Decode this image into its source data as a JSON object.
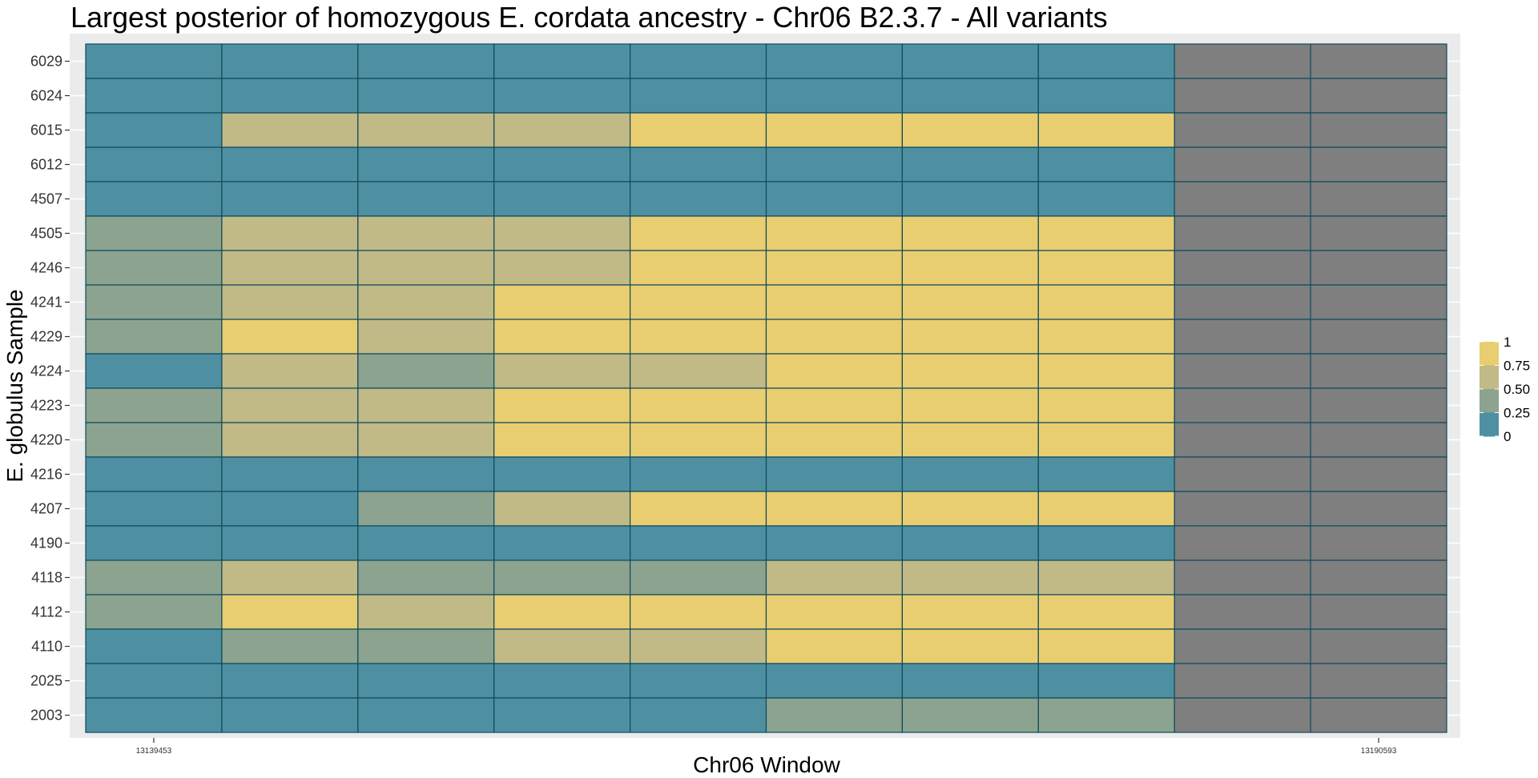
{
  "chart_data": {
    "type": "heatmap",
    "title": "Largest posterior of homozygous E. cordata ancestry - Chr06 B2.3.7 - All variants",
    "xlabel": "Chr06 Window",
    "ylabel": "E. globulus Sample",
    "x_tick_labels": [
      "13139453",
      "",
      "",
      "",
      "",
      "",
      "",
      "",
      "",
      "13190593"
    ],
    "rows": [
      "6029",
      "6024",
      "6015",
      "6012",
      "4507",
      "4505",
      "4246",
      "4241",
      "4229",
      "4224",
      "4223",
      "4220",
      "4216",
      "4207",
      "4190",
      "4118",
      "4112",
      "4110",
      "2025",
      "2003"
    ],
    "values": [
      [
        0,
        0,
        0,
        0,
        0,
        0,
        0,
        0,
        null,
        null
      ],
      [
        0,
        0,
        0,
        0,
        0,
        0,
        0,
        0,
        null,
        null
      ],
      [
        0,
        0.75,
        0.75,
        0.75,
        1,
        1,
        1,
        1,
        null,
        null
      ],
      [
        0,
        0,
        0,
        0,
        0,
        0,
        0,
        0,
        null,
        null
      ],
      [
        0,
        0,
        0,
        0,
        0,
        0,
        0,
        0,
        null,
        null
      ],
      [
        0.5,
        0.75,
        0.75,
        0.75,
        1,
        1,
        1,
        1,
        null,
        null
      ],
      [
        0.5,
        0.75,
        0.75,
        0.75,
        1,
        1,
        1,
        1,
        null,
        null
      ],
      [
        0.5,
        0.75,
        0.75,
        1,
        1,
        1,
        1,
        1,
        null,
        null
      ],
      [
        0.5,
        1,
        0.75,
        1,
        1,
        1,
        1,
        1,
        null,
        null
      ],
      [
        0,
        0.75,
        0.5,
        0.75,
        0.75,
        1,
        1,
        1,
        null,
        null
      ],
      [
        0.5,
        0.75,
        0.75,
        1,
        1,
        1,
        1,
        1,
        null,
        null
      ],
      [
        0.5,
        0.75,
        0.75,
        1,
        1,
        1,
        1,
        1,
        null,
        null
      ],
      [
        0,
        0,
        0,
        0,
        0,
        0,
        0,
        0,
        null,
        null
      ],
      [
        0,
        0,
        0.5,
        0.75,
        1,
        1,
        1,
        1,
        null,
        null
      ],
      [
        0,
        0,
        0,
        0,
        0,
        0,
        0,
        0,
        null,
        null
      ],
      [
        0.5,
        0.75,
        0.5,
        0.5,
        0.5,
        0.75,
        0.75,
        0.75,
        null,
        null
      ],
      [
        0.5,
        1,
        0.75,
        1,
        1,
        1,
        1,
        1,
        null,
        null
      ],
      [
        0,
        0.5,
        0.5,
        0.75,
        0.75,
        1,
        1,
        1,
        null,
        null
      ],
      [
        0,
        0,
        0,
        0,
        0,
        0,
        0,
        0,
        null,
        null
      ],
      [
        0,
        0,
        0,
        0,
        0,
        0.5,
        0.5,
        0.5,
        null,
        null
      ]
    ],
    "color_scale": {
      "breaks": [
        0,
        0.25,
        0.5,
        0.75,
        1
      ],
      "labels": [
        "0",
        "0.25",
        "0.50",
        "0.75",
        "1"
      ],
      "colors": {
        "0": "#4e90a2",
        "0.25": "#4e90a2",
        "0.5": "#8ba38f",
        "0.75": "#c1b986",
        "1": "#e9cd71"
      },
      "legend_colors": [
        "#e9cd71",
        "#c1b986",
        "#8ba38f",
        "#4e90a2"
      ],
      "na_color": "#7f7f7f",
      "border_color": "#0d4a5c"
    },
    "legend_position": "right",
    "grid": true,
    "panel_background": "#ebebeb"
  }
}
